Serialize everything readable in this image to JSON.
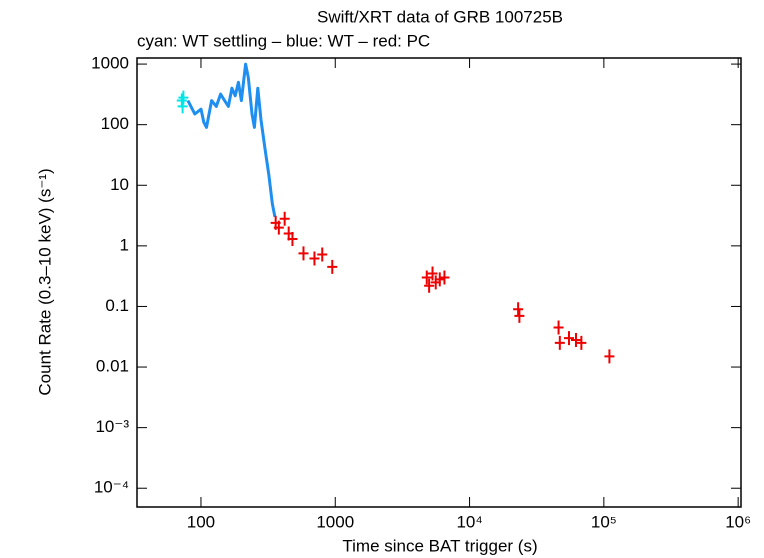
{
  "chart_data": {
    "type": "scatter",
    "title": "Swift/XRT data of GRB 100725B",
    "subtitle": "cyan: WT settling – blue: WT – red: PC",
    "x_label": "Time since BAT trigger (s)",
    "y_label": "Count Rate (0.3–10 keV) (s⁻¹)",
    "log_x": true,
    "log_y": true,
    "xlim": [
      33.4,
      1050000
    ],
    "ylim": [
      4.9e-05,
      1260
    ],
    "xticks": [
      100,
      1000,
      {
        "value": 10000,
        "label": "10⁴"
      },
      {
        "value": 100000,
        "label": "10⁵"
      },
      {
        "value": 1000000,
        "label": "10⁶"
      }
    ],
    "yticks": [
      {
        "value": 0.0001,
        "label": "10⁻⁴"
      },
      {
        "value": 0.001,
        "label": "10⁻³"
      },
      0.01,
      0.1,
      1,
      10,
      100,
      1000
    ],
    "series": [
      {
        "color": "#00e5e5",
        "mode": "points",
        "x": [
          72,
          73,
          74
        ],
        "values": [
          250,
          200,
          280
        ]
      },
      {
        "color": "#1e8ef0",
        "mode": "line",
        "x": [
          80,
          90,
          100,
          105,
          110,
          120,
          130,
          140,
          150,
          160,
          170,
          180,
          190,
          200,
          215,
          225,
          240,
          250,
          265,
          280,
          300,
          320,
          340,
          355
        ],
        "values": [
          250,
          150,
          180,
          110,
          90,
          250,
          200,
          320,
          250,
          200,
          400,
          300,
          500,
          250,
          1000,
          600,
          150,
          90,
          400,
          120,
          40,
          15,
          5,
          3
        ]
      },
      {
        "color": "#ee0000",
        "mode": "points",
        "x": [
          360,
          380,
          420,
          450,
          480,
          580,
          700,
          800,
          950,
          4800,
          5000,
          5300,
          5600,
          6000,
          6500,
          23000,
          23500,
          46000,
          47000,
          55000,
          62000,
          68000,
          110000
        ],
        "values": [
          2.4,
          2.0,
          2.8,
          1.6,
          1.3,
          0.75,
          0.62,
          0.72,
          0.45,
          0.3,
          0.22,
          0.35,
          0.25,
          0.28,
          0.3,
          0.09,
          0.07,
          0.045,
          0.025,
          0.03,
          0.028,
          0.025,
          0.015
        ]
      }
    ]
  }
}
